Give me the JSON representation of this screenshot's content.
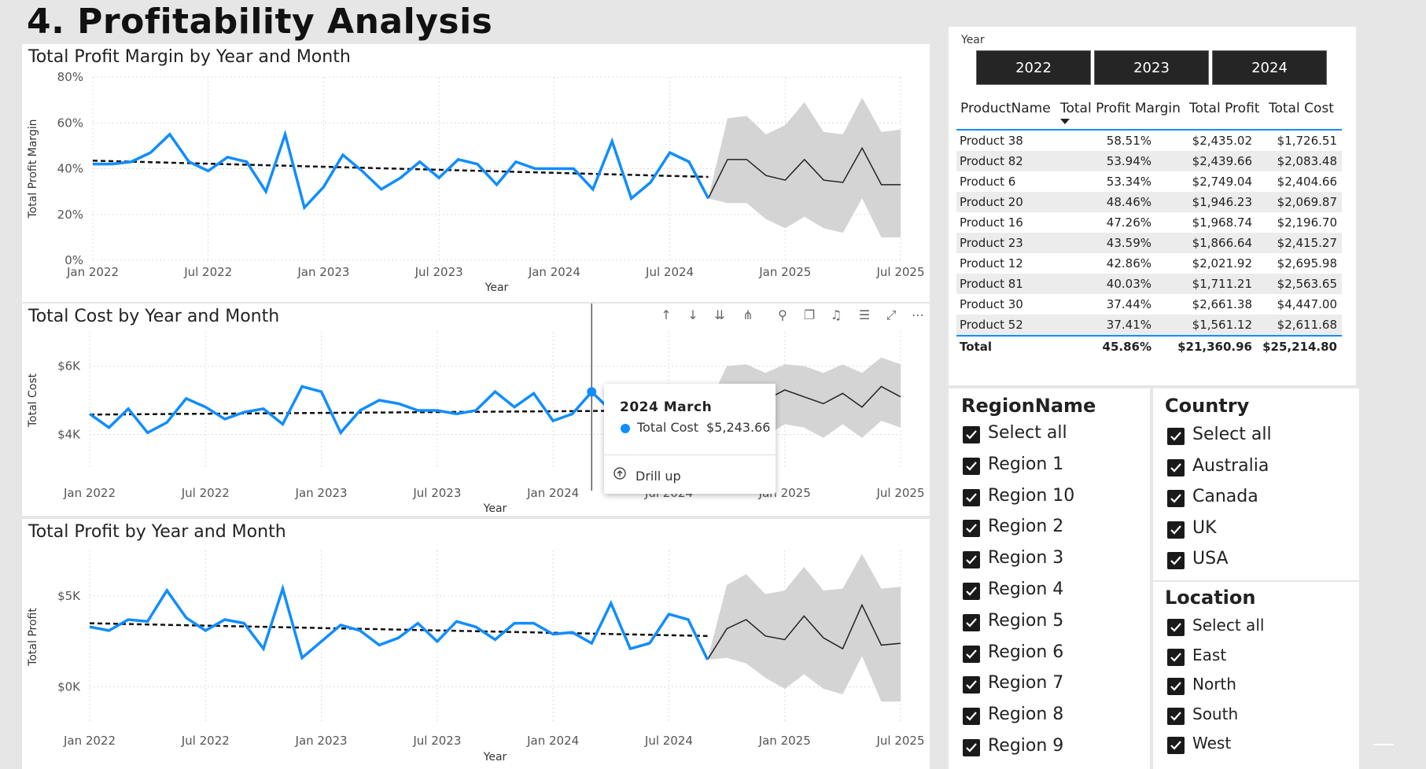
{
  "page": {
    "title": "4. Profitability Analysis"
  },
  "charts": {
    "margin": {
      "title": "Total Profit Margin by Year and Month",
      "ylabel": "Total Profit Margin",
      "xlabel": "Year"
    },
    "cost": {
      "title": "Total Cost by Year and Month",
      "ylabel": "Total Cost",
      "xlabel": "Year"
    },
    "profit": {
      "title": "Total Profit by Year and Month",
      "ylabel": "Total Profit",
      "xlabel": "Year"
    }
  },
  "chart_data": [
    {
      "type": "line",
      "title": "Total Profit Margin by Year and Month",
      "xlabel": "Year",
      "ylabel": "Total Profit Margin",
      "x_ticks": [
        "Jan 2022",
        "Jul 2022",
        "Jan 2023",
        "Jul 2023",
        "Jan 2024",
        "Jul 2024",
        "Jan 2025",
        "Jul 2025"
      ],
      "y_ticks": [
        "0%",
        "20%",
        "40%",
        "60%",
        "80%"
      ],
      "ylim": [
        0,
        80
      ],
      "x_start": "Jan 2022",
      "series": [
        {
          "values": [
            42,
            42,
            43,
            47,
            55,
            43,
            39,
            45,
            43,
            30,
            55,
            23,
            32,
            46,
            39,
            31,
            36,
            43,
            36,
            44,
            42,
            33,
            43,
            40,
            40,
            40,
            31,
            52,
            27,
            34,
            47,
            43,
            27
          ]
        }
      ],
      "trend": [
        43.5,
        36.4
      ],
      "forecast": {
        "values": [
          27,
          44,
          44,
          37,
          35,
          44,
          35,
          34,
          49,
          33,
          33
        ],
        "upper": [
          27,
          62,
          63,
          55,
          59,
          69,
          56,
          55,
          71,
          56,
          57
        ],
        "lower": [
          27,
          25,
          25,
          18,
          14,
          19,
          14,
          12,
          27,
          10,
          10
        ]
      }
    },
    {
      "type": "line",
      "title": "Total Cost by Year and Month",
      "xlabel": "Year",
      "ylabel": "Total Cost",
      "x_ticks": [
        "Jan 2022",
        "Jul 2022",
        "Jan 2023",
        "Jul 2023",
        "Jan 2024",
        "Jul 2024",
        "Jan 2025",
        "Jul 2025"
      ],
      "y_ticks": [
        "$4K",
        "$6K"
      ],
      "ylim": [
        3000,
        7000
      ],
      "x_start": "Jan 2022",
      "series": [
        {
          "values": [
            4600,
            4200,
            4750,
            4050,
            4350,
            5050,
            4800,
            4450,
            4650,
            4750,
            4300,
            5400,
            5250,
            4050,
            4700,
            5000,
            4900,
            4700,
            4700,
            4600,
            4700,
            5250,
            4800,
            5200,
            4400,
            4600,
            5244,
            4700,
            4750,
            4800,
            4900,
            4700,
            4800
          ]
        }
      ],
      "trend": [
        4580,
        4710
      ],
      "forecast": {
        "values": [
          4800,
          5100,
          5200,
          5000,
          5300,
          5100,
          4900,
          5200,
          4800,
          5400,
          5100
        ],
        "upper": [
          4800,
          6000,
          6050,
          5800,
          6050,
          6000,
          5800,
          6050,
          5800,
          6250,
          6050
        ],
        "lower": [
          4800,
          4100,
          4250,
          3950,
          4300,
          4200,
          3900,
          4300,
          3900,
          4400,
          4200
        ]
      }
    },
    {
      "type": "line",
      "title": "Total Profit by Year and Month",
      "xlabel": "Year",
      "ylabel": "Total Profit",
      "x_ticks": [
        "Jan 2022",
        "Jul 2022",
        "Jan 2023",
        "Jul 2023",
        "Jan 2024",
        "Jul 2024",
        "Jan 2025",
        "Jul 2025"
      ],
      "y_ticks": [
        "$0K",
        "$5K"
      ],
      "ylim": [
        -2000,
        7500
      ],
      "x_start": "Jan 2022",
      "series": [
        {
          "values": [
            3300,
            3100,
            3700,
            3600,
            5300,
            3800,
            3100,
            3700,
            3500,
            2100,
            5400,
            1600,
            2500,
            3400,
            3100,
            2300,
            2700,
            3500,
            2500,
            3600,
            3300,
            2600,
            3500,
            3500,
            2900,
            3000,
            2400,
            4600,
            2100,
            2400,
            4000,
            3700,
            1500
          ]
        }
      ],
      "trend": [
        3500,
        2800
      ],
      "forecast": {
        "values": [
          1500,
          3200,
          3700,
          2800,
          2600,
          3900,
          2700,
          2100,
          4500,
          2300,
          2400
        ],
        "upper": [
          1500,
          5600,
          6200,
          5100,
          5300,
          6600,
          5300,
          5400,
          7300,
          5400,
          5500
        ],
        "lower": [
          1500,
          1600,
          1300,
          500,
          -100,
          700,
          -100,
          -400,
          1700,
          -800,
          -800
        ]
      }
    }
  ],
  "tooltip": {
    "title": "2024 March",
    "series_label": "Total Cost",
    "value": "$5,243.66",
    "drill_label": "Drill up"
  },
  "year_slicer": {
    "label": "Year",
    "options": [
      "2022",
      "2023",
      "2024"
    ]
  },
  "table": {
    "headers": [
      "ProductName",
      "Total Profit Margin",
      "Total Profit",
      "Total Cost"
    ],
    "rows": [
      [
        "Product 38",
        "58.51%",
        "$2,435.02",
        "$1,726.51"
      ],
      [
        "Product 82",
        "53.94%",
        "$2,439.66",
        "$2,083.48"
      ],
      [
        "Product 6",
        "53.34%",
        "$2,749.04",
        "$2,404.66"
      ],
      [
        "Product 20",
        "48.46%",
        "$1,946.23",
        "$2,069.87"
      ],
      [
        "Product 16",
        "47.26%",
        "$1,968.74",
        "$2,196.70"
      ],
      [
        "Product 23",
        "43.59%",
        "$1,866.64",
        "$2,415.27"
      ],
      [
        "Product 12",
        "42.86%",
        "$2,021.92",
        "$2,695.98"
      ],
      [
        "Product 81",
        "40.03%",
        "$1,711.21",
        "$2,563.65"
      ],
      [
        "Product 30",
        "37.44%",
        "$2,661.38",
        "$4,447.00"
      ],
      [
        "Product 52",
        "37.41%",
        "$1,561.12",
        "$2,611.68"
      ]
    ],
    "total": [
      "Total",
      "45.86%",
      "$21,360.96",
      "$25,214.80"
    ]
  },
  "region_slicer": {
    "title": "RegionName",
    "items": [
      "Select all",
      "Region 1",
      "Region 10",
      "Region 2",
      "Region 3",
      "Region 4",
      "Region 5",
      "Region 6",
      "Region 7",
      "Region 8",
      "Region 9"
    ]
  },
  "country_slicer": {
    "title": "Country",
    "items": [
      "Select all",
      "Australia",
      "Canada",
      "UK",
      "USA"
    ]
  },
  "location_slicer": {
    "title": "Location",
    "items": [
      "Select all",
      "East",
      "North",
      "South",
      "West"
    ]
  },
  "colors": {
    "series": "#118dff",
    "forecast_band": "#d4d4d4",
    "forecast_line": "#222222",
    "trend": "#111111"
  },
  "visual_toolbar": {
    "icons": [
      "drill-up-arrow-icon",
      "drill-down-arrow-icon",
      "expand-next-level-icon",
      "expand-all-icon",
      "pin-icon",
      "copy-icon",
      "alert-icon",
      "filter-icon",
      "focus-mode-icon",
      "more-options-icon"
    ]
  }
}
